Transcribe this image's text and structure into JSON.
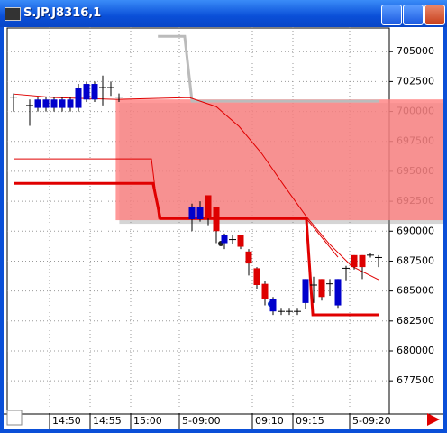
{
  "window": {
    "title": "S.JP.J8316,1"
  },
  "chart_data": {
    "type": "candlestick",
    "categories": [
      null,
      null,
      null,
      null,
      null,
      "14:50",
      null,
      null,
      null,
      null,
      "14:55",
      null,
      null,
      null,
      null,
      "15:00",
      null,
      null,
      null,
      null,
      null,
      "5-09:00",
      null,
      null,
      null,
      null,
      null,
      null,
      null,
      null,
      "09:10",
      null,
      null,
      null,
      null,
      "09:15",
      null,
      null,
      null,
      null,
      null,
      null,
      "5-09:20",
      null,
      null,
      null
    ],
    "open": [
      701200,
      null,
      700500,
      700300,
      700300,
      700300,
      700300,
      700300,
      700300,
      701000,
      701000,
      702000,
      702000,
      701200,
      null,
      null,
      null,
      null,
      null,
      null,
      null,
      null,
      691000,
      691000,
      693000,
      692000,
      689000,
      689300,
      689700,
      688300,
      686900,
      685600,
      683300,
      683300,
      683300,
      683300,
      684000,
      685500,
      686000,
      685600,
      683800,
      686900,
      688000,
      688000,
      688000,
      687800
    ],
    "high": [
      701500,
      null,
      701000,
      701200,
      701200,
      701200,
      701200,
      701200,
      702300,
      702500,
      702500,
      703000,
      702500,
      701500,
      null,
      null,
      null,
      null,
      null,
      null,
      null,
      null,
      692300,
      692500,
      693000,
      692000,
      689800,
      689700,
      689700,
      688500,
      687000,
      685800,
      684500,
      683600,
      683600,
      683600,
      686000,
      686200,
      686000,
      686000,
      686000,
      687100,
      688000,
      688000,
      688200,
      688000
    ],
    "low": [
      700000,
      null,
      698800,
      700000,
      700000,
      700000,
      700000,
      700000,
      700000,
      700800,
      700800,
      700500,
      701300,
      700800,
      null,
      null,
      null,
      null,
      null,
      null,
      null,
      null,
      690000,
      690800,
      690500,
      689000,
      688500,
      688900,
      688500,
      686300,
      685200,
      683800,
      683000,
      683000,
      683000,
      683000,
      683500,
      684000,
      684200,
      684600,
      683600,
      685900,
      686800,
      686000,
      687800,
      687000
    ],
    "close": [
      701200,
      null,
      700500,
      701000,
      701000,
      701000,
      701000,
      701000,
      702000,
      702300,
      702300,
      702000,
      702000,
      701200,
      null,
      null,
      null,
      null,
      null,
      null,
      null,
      null,
      692000,
      692000,
      691060,
      690000,
      689700,
      689300,
      688700,
      687300,
      685500,
      684300,
      684300,
      683300,
      683300,
      683300,
      686000,
      685500,
      684500,
      685600,
      686000,
      686900,
      687000,
      687000,
      688000,
      687800
    ],
    "up_color": "#0000cc",
    "down_color": "#dd0000",
    "ylim": [
      674800,
      707050
    ],
    "yticks": [
      677500,
      680000,
      682500,
      685000,
      687500,
      690000,
      692500,
      695000,
      697500,
      700000,
      702500,
      705000
    ],
    "grid": true,
    "zone": {
      "color": "#ff8080",
      "start": 12.6,
      "low": 690920,
      "high": 701010
    },
    "lines": [
      {
        "color": "#bbbbbb",
        "width": 3,
        "x": [
          17.8,
          21.1,
          22,
          45
        ],
        "values": [
          706280,
          706280,
          700860,
          700860
        ]
      },
      {
        "color": "#e00000",
        "width": 1,
        "x": [
          0,
          5,
          12.8,
          21.7,
          25,
          27.8,
          30.6,
          33.3,
          36.1,
          38.9,
          41.7,
          45
        ],
        "values": [
          701460,
          701160,
          701010,
          701160,
          700400,
          698750,
          696490,
          693860,
          691220,
          688960,
          687080,
          685950
        ]
      },
      {
        "color": "#e00000",
        "width": 1,
        "x": [
          0,
          17,
          17.9,
          36.1,
          40
        ],
        "values": [
          696040,
          696040,
          691060,
          691060,
          687830
        ]
      },
      {
        "color": "#e00000",
        "width": 3,
        "x": [
          0,
          17.2,
          18.1,
          36.1,
          36.9,
          45
        ],
        "values": [
          694000,
          694000,
          691060,
          691060,
          683010,
          683010
        ]
      }
    ]
  }
}
